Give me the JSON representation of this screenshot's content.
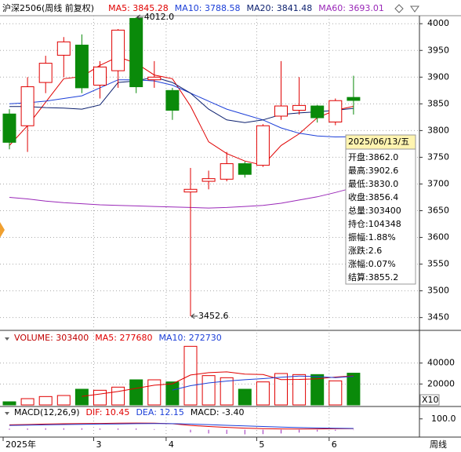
{
  "chart_data": [
    {
      "type": "candlestick",
      "title": "沪深2506(周线 前复权)",
      "categories": [
        null,
        null,
        null,
        null,
        null,
        null,
        null,
        null,
        null,
        null,
        null,
        null,
        null,
        null,
        null,
        null,
        null,
        null,
        null,
        null
      ],
      "open": [
        3831,
        3809,
        3890,
        3941,
        3960,
        3885,
        3912,
        4010,
        3895,
        3875,
        3685,
        3705,
        3709,
        3738,
        3735,
        3827,
        3838,
        3846,
        3816,
        3862
      ],
      "high": [
        3840,
        3900,
        3940,
        3975,
        3980,
        3930,
        3990,
        4012,
        3930,
        3880,
        3730,
        3725,
        3760,
        3742,
        3812,
        3930,
        3900,
        3848,
        3860,
        3902.6
      ],
      "low": [
        3765,
        3760,
        3870,
        3900,
        3870,
        3860,
        3880,
        3870,
        3880,
        3820,
        3452.6,
        3690,
        3705,
        3712,
        3732,
        3820,
        3830,
        3815,
        3810,
        3830
      ],
      "close": [
        3778,
        3882,
        3926,
        3966,
        3880,
        3919,
        3988,
        3882,
        3900,
        3838,
        3690,
        3710,
        3738,
        3718,
        3809,
        3846,
        3847,
        3824,
        3856,
        3856.4
      ],
      "up_color": "#e00000",
      "down_color": "#0a8a0a",
      "series": [
        {
          "name": "MA5: 3845.28",
          "color": "#e00000",
          "values": [
            3772,
            3809,
            3853,
            3897,
            3901,
            3922,
            3938,
            3926,
            3904,
            3897,
            3846,
            3779,
            3757,
            3743,
            3735,
            3772,
            3794,
            3824,
            3838,
            3845.28
          ]
        },
        {
          "name": "MA10: 3788.58",
          "color": "#1c3fd8",
          "values": [
            3850,
            3852,
            3855,
            3860,
            3865,
            3880,
            3895,
            3895,
            3893,
            3885,
            3870,
            3855,
            3840,
            3830,
            3820,
            3805,
            3795,
            3790,
            3788,
            3788.58
          ]
        },
        {
          "name": "MA20: 3841.48",
          "color": "#0b1f6e",
          "values": [
            3845,
            3845,
            3843,
            3842,
            3840,
            3848,
            3890,
            3893,
            3900,
            3890,
            3870,
            3840,
            3820,
            3815,
            3820,
            3830,
            3833,
            3835,
            3838,
            3841.48
          ]
        },
        {
          "name": "MA60: 3693.01",
          "color": "#9a28b8",
          "values": [
            3675,
            3672,
            3668,
            3665,
            3663,
            3661,
            3660,
            3659,
            3658,
            3657,
            3656,
            3655,
            3656,
            3658,
            3660,
            3664,
            3670,
            3676,
            3684,
            3693.01
          ]
        }
      ],
      "ylim": [
        3426,
        4015
      ],
      "yticks": [
        3450,
        3500,
        3550,
        3600,
        3650,
        3700,
        3750,
        3800,
        3850,
        3900,
        3950,
        4000
      ],
      "xticks": [
        {
          "value": 0,
          "label": "2025年"
        },
        {
          "value": 5,
          "label": "3"
        },
        {
          "value": 9,
          "label": "4"
        },
        {
          "value": 14,
          "label": "5"
        },
        {
          "value": 18,
          "label": "6"
        }
      ],
      "annotations": [
        {
          "text": "4012.0",
          "index": 7,
          "value": 4012
        },
        {
          "text": "3452.6",
          "index": 10,
          "value": 3452.6
        }
      ],
      "period_label": "周线",
      "grid": true
    },
    {
      "type": "bar",
      "title": "VOLUME: 303400",
      "title_color": "#c00000",
      "values": [
        3000,
        6000,
        8000,
        9000,
        15000,
        14000,
        17000,
        24000,
        24000,
        22000,
        56000,
        28000,
        26000,
        15000,
        22000,
        30000,
        29000,
        29000,
        23000,
        30340
      ],
      "series": [
        {
          "name": "MA5: 277680",
          "color": "#e00000",
          "values": [
            null,
            null,
            null,
            null,
            8200,
            10400,
            12800,
            15800,
            18800,
            20200,
            28600,
            30800,
            31600,
            29400,
            29000,
            24200,
            24400,
            25000,
            26600,
            27768
          ]
        },
        {
          "name": "MA10: 272730",
          "color": "#1c3fd8",
          "values": [
            null,
            null,
            null,
            null,
            null,
            null,
            null,
            null,
            null,
            14200,
            18400,
            21000,
            22800,
            24100,
            25100,
            26400,
            27600,
            27100,
            26000,
            27273
          ]
        }
      ],
      "ylim": [
        0,
        57000
      ],
      "yticks": [
        20000,
        40000
      ],
      "unit_label": "X10"
    },
    {
      "type": "macd",
      "title": "MACD(12,26,9)",
      "series": [
        {
          "name": "DIF: 10.45",
          "color": "#e00000",
          "values": [
            45,
            48,
            52,
            55,
            57,
            58,
            60,
            62,
            60,
            55,
            40,
            30,
            22,
            15,
            10,
            8,
            7,
            8,
            9,
            10.45
          ]
        },
        {
          "name": "DEA: 12.15",
          "color": "#1c3fd8",
          "values": [
            40,
            42,
            45,
            48,
            50,
            52,
            54,
            56,
            57,
            56,
            52,
            47,
            41,
            36,
            30,
            25,
            20,
            16,
            14,
            12.15
          ]
        }
      ],
      "histogram": {
        "name": "MACD: -3.40",
        "color": "#9a28b8",
        "values": [
          10,
          12,
          14,
          14,
          14,
          12,
          12,
          12,
          6,
          -2,
          -24,
          -34,
          -38,
          -42,
          -40,
          -34,
          -26,
          -16,
          -10,
          -3.4
        ]
      },
      "ylim": [
        -60,
        120
      ],
      "yticks": [
        {
          "value": 100,
          "label": "100.0"
        }
      ]
    }
  ],
  "tooltip": {
    "date": "2025/06/13/五",
    "rows": [
      "开盘:3862.0",
      "最高:3902.6",
      "最低:3830.0",
      "收盘:3856.4",
      "总量:303400",
      "持仓:104348",
      "振幅:1.88%",
      "涨跌:2.6",
      "涨幅:0.07%",
      "结算:3855.2"
    ]
  }
}
